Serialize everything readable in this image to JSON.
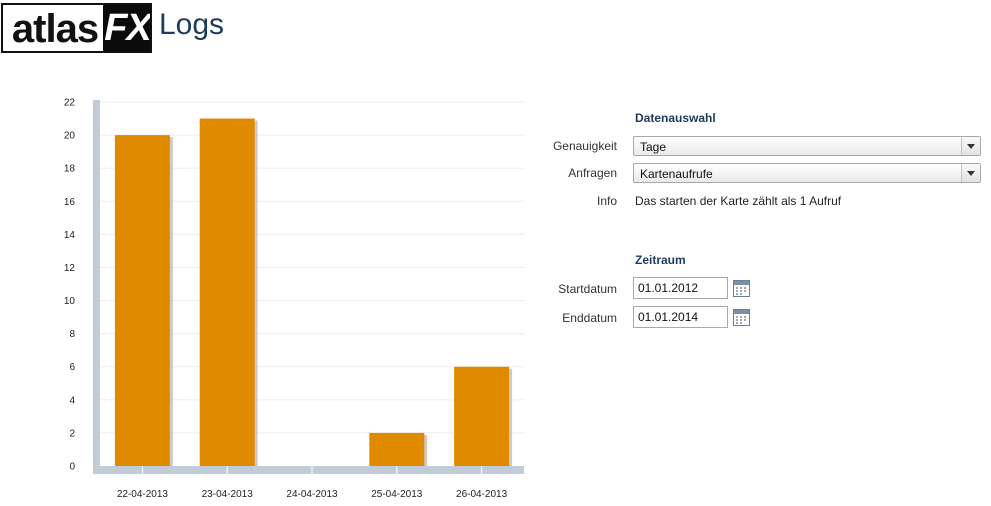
{
  "header": {
    "logo_atlas": "atlas",
    "logo_fx": "FX",
    "title": "Logs"
  },
  "chart_data": {
    "type": "bar",
    "categories": [
      "22-04-2013",
      "23-04-2013",
      "24-04-2013",
      "25-04-2013",
      "26-04-2013"
    ],
    "values": [
      20,
      21,
      0,
      2,
      6
    ],
    "ylim": [
      0,
      22
    ],
    "yticks": [
      0,
      2,
      4,
      6,
      8,
      10,
      12,
      14,
      16,
      18,
      20,
      22
    ],
    "title": "",
    "xlabel": "",
    "ylabel": "",
    "grid": true,
    "bar_color": "#e08a00",
    "axis_color": "#c2ccd8"
  },
  "form": {
    "data_section": {
      "title": "Datenauswahl",
      "precision_label": "Genauigkeit",
      "precision_value": "Tage",
      "requests_label": "Anfragen",
      "requests_value": "Kartenaufrufe",
      "info_label": "Info",
      "info_text": "Das starten der Karte zählt als 1 Aufruf"
    },
    "period_section": {
      "title": "Zeitraum",
      "start_label": "Startdatum",
      "start_value": "01.01.2012",
      "end_label": "Enddatum",
      "end_value": "01.01.2014"
    }
  }
}
